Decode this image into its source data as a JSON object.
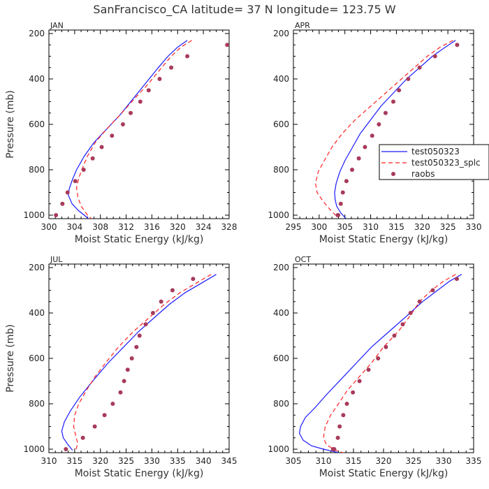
{
  "chart_data": {
    "title": "SanFrancisco_CA  latitude= 37 N longitude= 123.75 W",
    "xlabel": "Moist Static Energy (kJ/kg)",
    "ylabel": "Pressure (mb)",
    "colors": {
      "model": "#1a1aff",
      "model2": "#ff2020",
      "obs": "#a83a5a",
      "axis": "#000000"
    },
    "legend": {
      "location": "right of APR panel",
      "entries": [
        {
          "name": "test050323",
          "style": "solid",
          "color": "#1a1aff"
        },
        {
          "name": "test050323_splc",
          "style": "dashed",
          "color": "#ff2020"
        },
        {
          "name": "raobs",
          "style": "dots",
          "color": "#a83a5a"
        }
      ]
    },
    "panels": [
      {
        "label": "JAN",
        "xlim": [
          300,
          328
        ],
        "ylim": [
          1000,
          200
        ],
        "xticks": [
          300,
          304,
          308,
          312,
          316,
          320,
          324,
          328
        ],
        "yticks": [
          200,
          400,
          600,
          800,
          1000
        ],
        "series": [
          {
            "name": "test050323",
            "style": "solid",
            "x": [
              321.5,
              320.0,
              318.5,
              317.0,
              315.0,
              313.0,
              311.0,
              309.0,
              307.0,
              305.5,
              304.3,
              303.7,
              303.2,
              303.0,
              303.6,
              304.6,
              305.5,
              306.3
            ],
            "y": [
              230,
              260,
              300,
              350,
              420,
              490,
              560,
              620,
              680,
              740,
              800,
              840,
              880,
              910,
              950,
              980,
              1000,
              1020
            ]
          },
          {
            "name": "test050323_splc",
            "style": "dashed",
            "x": [
              322.2,
              320.5,
              319.0,
              317.5,
              315.5,
              313.2,
              311.0,
              309.0,
              307.2,
              306.0,
              305.1,
              304.6,
              304.3,
              304.5,
              305.0,
              306.0,
              306.8
            ],
            "y": [
              230,
              260,
              300,
              350,
              420,
              490,
              560,
              620,
              680,
              740,
              800,
              840,
              880,
              920,
              960,
              1000,
              1020
            ]
          }
        ],
        "points": {
          "name": "raobs",
          "x": [
            327.7,
            321.5,
            319.0,
            317.2,
            315.5,
            314.2,
            312.7,
            311.5,
            309.8,
            308.2,
            306.8,
            305.4,
            304.1,
            302.9,
            302.1,
            301.1
          ],
          "y": [
            250,
            300,
            350,
            400,
            450,
            500,
            550,
            600,
            650,
            700,
            750,
            800,
            850,
            900,
            950,
            1000
          ]
        }
      },
      {
        "label": "APR",
        "xlim": [
          295,
          330
        ],
        "ylim": [
          1000,
          200
        ],
        "xticks": [
          295,
          300,
          305,
          310,
          315,
          320,
          325,
          330
        ],
        "yticks": [
          200,
          400,
          600,
          800,
          1000
        ],
        "series": [
          {
            "name": "test050323",
            "style": "solid",
            "x": [
              326.5,
              324.5,
              322.0,
              319.5,
              317.0,
              314.5,
              312.0,
              310.0,
              308.0,
              306.5,
              305.0,
              304.0,
              303.3,
              303.0,
              303.1,
              303.4,
              304.2,
              305.2
            ],
            "y": [
              230,
              260,
              300,
              350,
              400,
              460,
              520,
              580,
              640,
              700,
              760,
              810,
              860,
              900,
              930,
              960,
              990,
              1015
            ]
          },
          {
            "name": "test050323_splc",
            "style": "dashed",
            "x": [
              326.0,
              323.5,
              321.0,
              318.5,
              316.0,
              313.0,
              310.0,
              307.0,
              304.5,
              302.5,
              301.0,
              299.8,
              299.3,
              299.6,
              300.8,
              302.3,
              303.2
            ],
            "y": [
              230,
              260,
              300,
              350,
              400,
              460,
              520,
              580,
              640,
              700,
              760,
              810,
              860,
              900,
              940,
              980,
              1000
            ]
          }
        ],
        "points": {
          "name": "raobs",
          "x": [
            326.8,
            322.5,
            319.5,
            317.3,
            315.5,
            314.4,
            312.9,
            311.6,
            310.3,
            308.9,
            307.7,
            306.4,
            305.3,
            304.6,
            304.2,
            303.7,
            303.6
          ],
          "y": [
            250,
            300,
            350,
            400,
            450,
            500,
            550,
            600,
            650,
            700,
            750,
            800,
            850,
            900,
            950,
            1000,
            1000
          ]
        }
      },
      {
        "label": "JUL",
        "xlim": [
          310,
          345
        ],
        "ylim": [
          1000,
          200
        ],
        "xticks": [
          310,
          315,
          320,
          325,
          330,
          335,
          340,
          345
        ],
        "yticks": [
          200,
          400,
          600,
          800,
          1000
        ],
        "series": [
          {
            "name": "test050323",
            "style": "solid",
            "x": [
              342.5,
              339.5,
              336.5,
              333.5,
              330.5,
              327.5,
              324.5,
              321.5,
              318.5,
              316.0,
              314.2,
              313.0,
              312.5,
              312.8,
              313.7,
              314.6
            ],
            "y": [
              230,
              270,
              310,
              360,
              420,
              480,
              550,
              620,
              700,
              770,
              830,
              880,
              920,
              950,
              980,
              1005
            ]
          },
          {
            "name": "test050323_splc",
            "style": "dashed",
            "x": [
              341.5,
              338.5,
              335.5,
              332.5,
              329.5,
              326.5,
              323.5,
              321.0,
              319.0,
              317.3,
              315.8,
              315.0,
              314.8,
              315.2,
              315.6,
              315.2
            ],
            "y": [
              230,
              270,
              310,
              360,
              420,
              480,
              550,
              620,
              680,
              740,
              800,
              850,
              900,
              940,
              975,
              1005
            ]
          }
        ],
        "points": {
          "name": "raobs",
          "x": [
            338.0,
            334.0,
            331.8,
            330.2,
            328.8,
            327.6,
            327.0,
            326.1,
            325.3,
            324.6,
            323.9,
            322.4,
            320.8,
            318.9,
            316.6,
            313.3
          ],
          "y": [
            250,
            300,
            350,
            400,
            450,
            500,
            550,
            600,
            650,
            700,
            750,
            800,
            850,
            900,
            950,
            1000
          ]
        }
      },
      {
        "label": "OCT",
        "xlim": [
          305,
          335
        ],
        "ylim": [
          1000,
          200
        ],
        "xticks": [
          305,
          310,
          315,
          320,
          325,
          330,
          335
        ],
        "yticks": [
          200,
          400,
          600,
          800,
          1000
        ],
        "series": [
          {
            "name": "test050323",
            "style": "solid",
            "x": [
              333.0,
              331.0,
              329.0,
              326.5,
              324.0,
              321.0,
              318.0,
              315.5,
              313.0,
              310.5,
              308.5,
              307.0,
              306.2,
              306.0,
              306.6,
              308.0,
              310.0,
              312.5
            ],
            "y": [
              230,
              260,
              300,
              350,
              410,
              480,
              550,
              620,
              690,
              760,
              820,
              860,
              900,
              930,
              960,
              985,
              1000,
              1015
            ]
          },
          {
            "name": "test050323_splc",
            "style": "dashed",
            "x": [
              332.0,
              330.0,
              328.0,
              326.0,
              324.5,
              322.5,
              320.0,
              318.0,
              316.0,
              314.0,
              312.5,
              311.2,
              310.3,
              310.0,
              310.5,
              312.0,
              313.8
            ],
            "y": [
              230,
              260,
              300,
              350,
              410,
              480,
              550,
              620,
              680,
              740,
              800,
              850,
              900,
              950,
              980,
              1005,
              1020
            ]
          }
        ],
        "points": {
          "name": "raobs",
          "x": [
            332.2,
            328.2,
            326.0,
            324.5,
            323.2,
            321.8,
            320.4,
            319.1,
            317.5,
            316.0,
            314.9,
            313.9,
            313.3,
            312.7,
            312.4,
            311.8,
            311.6
          ],
          "y": [
            250,
            300,
            350,
            400,
            450,
            500,
            550,
            600,
            650,
            700,
            750,
            800,
            850,
            900,
            950,
            1000,
            1000
          ]
        }
      }
    ]
  }
}
